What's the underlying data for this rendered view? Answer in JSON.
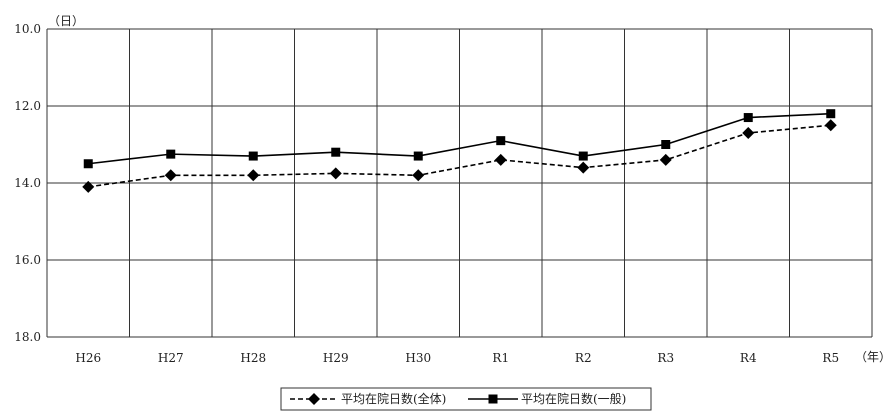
{
  "chart_data": {
    "type": "line",
    "y_unit_label": "（日）",
    "x_unit_label": "（年）",
    "categories": [
      "H26",
      "H27",
      "H28",
      "H29",
      "H30",
      "R1",
      "R2",
      "R3",
      "R4",
      "R5"
    ],
    "ylim": [
      10.0,
      18.0
    ],
    "y_inverted": true,
    "y_ticks": [
      "10.0",
      "12.0",
      "14.0",
      "16.0",
      "18.0"
    ],
    "y_tick_values": [
      10,
      12,
      14,
      16,
      18
    ],
    "grid": true,
    "legend_position": "bottom-center",
    "series": [
      {
        "name": "平均在院日数(全体)",
        "values": [
          14.1,
          13.8,
          13.8,
          13.75,
          13.8,
          13.4,
          13.6,
          13.4,
          12.7,
          12.5
        ],
        "line_style": "dashed",
        "marker": "diamond",
        "color": "#000000"
      },
      {
        "name": "平均在院日数(一般)",
        "values": [
          13.5,
          13.25,
          13.3,
          13.2,
          13.3,
          12.9,
          13.3,
          13.0,
          12.3,
          12.2
        ],
        "line_style": "solid",
        "marker": "square",
        "color": "#000000"
      }
    ]
  }
}
